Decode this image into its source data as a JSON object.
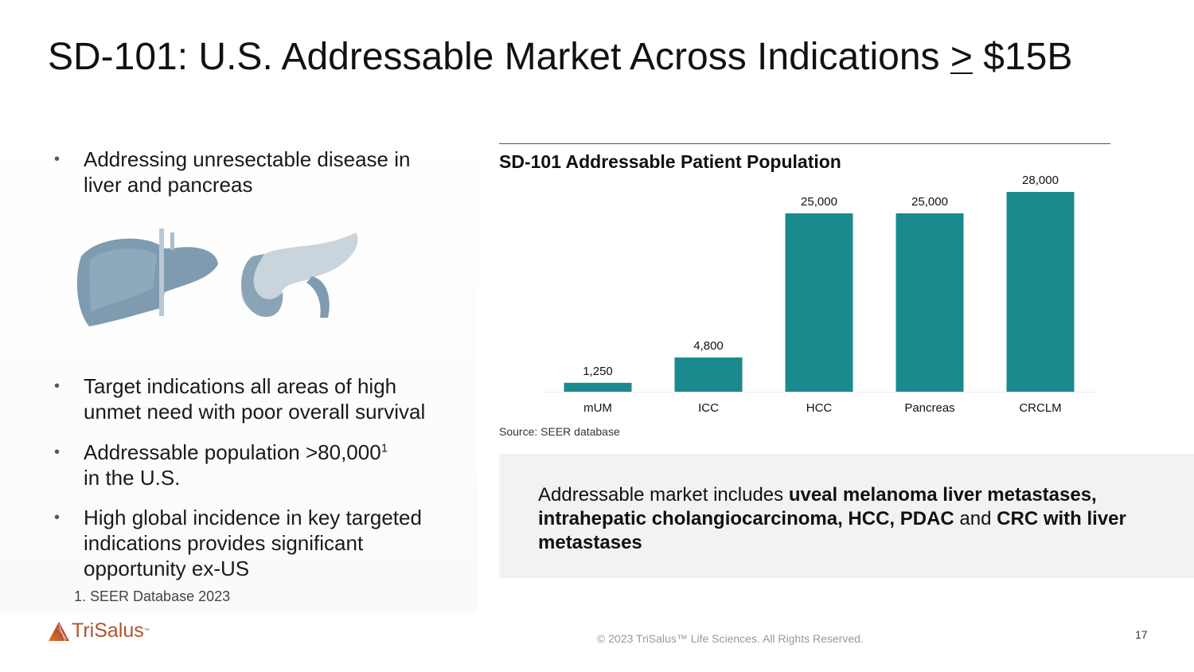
{
  "title": {
    "prefix": "SD-101: U.S. Addressable Market Across Indications ",
    "symbol": ">",
    "suffix": " $15B"
  },
  "bullets": [
    {
      "text": "Addressing unresectable disease in liver and pancreas"
    },
    {
      "text": "Target indications all areas of high unmet need with poor overall survival"
    },
    {
      "text": "Addressable population >80,000",
      "sup": "1",
      "text2": "in the U.S."
    },
    {
      "text": "High global incidence in key targeted indications provides significant opportunity ex-US"
    }
  ],
  "bullet_symbol": "•",
  "footnote": "1. SEER Database 2023",
  "chart_data": {
    "type": "bar",
    "title": "SD-101 Addressable Patient Population",
    "categories": [
      "mUM",
      "ICC",
      "HCC",
      "Pancreas",
      "CRCLM"
    ],
    "values": [
      1250,
      4800,
      25000,
      25000,
      28000
    ],
    "labels": [
      "1,250",
      "4,800",
      "25,000",
      "25,000",
      "28,000"
    ],
    "xlabel": "",
    "ylabel": "",
    "ylim": [
      0,
      28000
    ],
    "grid": false,
    "bar_color": "#1b8a8f"
  },
  "source": "Source: SEER database",
  "callout": {
    "t1": "Addressable market includes ",
    "b1": "uveal melanoma liver metastases, intrahepatic cholangiocarcinoma, HCC, PDAC",
    "t2": " and ",
    "b2": "CRC with liver metastases"
  },
  "logo": {
    "name": "TriSalus",
    "tm": "™"
  },
  "copyright": "© 2023 TriSalus™ Life Sciences. All Rights Reserved.",
  "page_number": "17"
}
